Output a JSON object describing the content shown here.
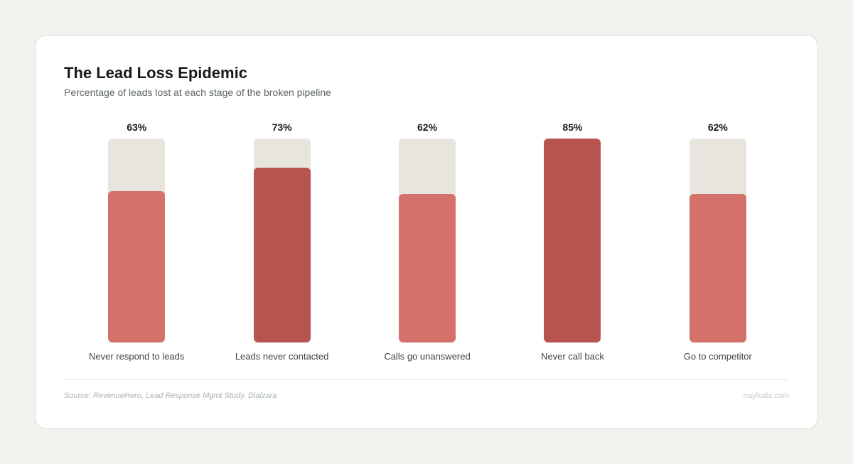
{
  "chart_data": {
    "type": "bar",
    "title": "The Lead Loss Epidemic",
    "subtitle": "Percentage of leads lost at each stage of the broken pipeline",
    "categories": [
      "Never respond to leads",
      "Leads never contacted",
      "Calls go unanswered",
      "Never call back",
      "Go to competitor"
    ],
    "values": [
      63,
      73,
      62,
      85,
      62
    ],
    "value_labels": [
      "63%",
      "73%",
      "62%",
      "85%",
      "62%"
    ],
    "colors": [
      "#d4716b",
      "#b85450",
      "#d4716b",
      "#b85450",
      "#d4716b"
    ],
    "ylim": [
      0,
      85
    ],
    "source": "Source: RevenueHero, Lead Response Mgmt Study, Dialzara",
    "brand": "nayikala.com"
  }
}
